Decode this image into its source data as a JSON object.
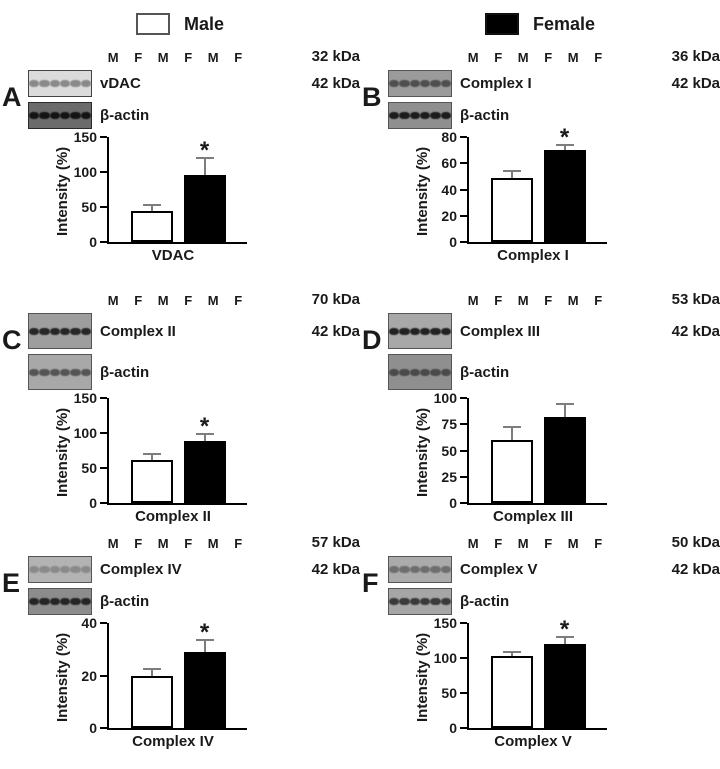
{
  "sig_marker": "*",
  "legend": {
    "male_label": "Male",
    "female_label": "Female",
    "male_color": "#ffffff",
    "female_color": "#000000"
  },
  "panels": [
    {
      "letter": "A",
      "lanes": [
        "M",
        "F",
        "M",
        "F",
        "M",
        "F"
      ],
      "blots": [
        {
          "kda": "32 kDa",
          "protein": "vDAC",
          "bg": "#dbdbdb",
          "band": "#8a8a8a",
          "border": "#444444"
        },
        {
          "kda": "42 kDa",
          "protein": "β-actin",
          "bg": "#6b6b6b",
          "band": "#141414",
          "border": "#2a2a2a"
        }
      ]
    },
    {
      "letter": "B",
      "lanes": [
        "M",
        "F",
        "M",
        "F",
        "M",
        "F"
      ],
      "blots": [
        {
          "kda": "36 kDa",
          "protein": "Complex I",
          "bg": "#9b9b9b",
          "band": "#4f4f4f",
          "border": "#555555"
        },
        {
          "kda": "42 kDa",
          "protein": "β-actin",
          "bg": "#8f8f8f",
          "band": "#1c1c1c",
          "border": "#555555"
        }
      ]
    },
    {
      "letter": "C",
      "lanes": [
        "M",
        "F",
        "M",
        "F",
        "M",
        "F"
      ],
      "blots": [
        {
          "kda": "70 kDa",
          "protein": "Complex II",
          "bg": "#9e9e9e",
          "band": "#262626",
          "border": "#555555"
        },
        {
          "kda": "42 kDa",
          "protein": "β-actin",
          "bg": "#a8a8a8",
          "band": "#555555",
          "border": "#555555"
        }
      ]
    },
    {
      "letter": "D",
      "lanes": [
        "M",
        "F",
        "M",
        "F",
        "M",
        "F"
      ],
      "blots": [
        {
          "kda": "53 kDa",
          "protein": "Complex III",
          "bg": "#a8a8a8",
          "band": "#222222",
          "border": "#555555"
        },
        {
          "kda": "42 kDa",
          "protein": "β-actin",
          "bg": "#8f8f8f",
          "band": "#4a4a4a",
          "border": "#555555"
        }
      ]
    },
    {
      "letter": "E",
      "lanes": [
        "M",
        "F",
        "M",
        "F",
        "M",
        "F"
      ],
      "blots": [
        {
          "kda": "57 kDa",
          "protein": "Complex IV",
          "bg": "#b3b3b3",
          "band": "#8a8a8a",
          "border": "#555555"
        },
        {
          "kda": "42 kDa",
          "protein": "β-actin",
          "bg": "#8c8c8c",
          "band": "#252525",
          "border": "#555555"
        }
      ]
    },
    {
      "letter": "F",
      "lanes": [
        "M",
        "F",
        "M",
        "F",
        "M",
        "F"
      ],
      "blots": [
        {
          "kda": "50 kDa",
          "protein": "Complex V",
          "bg": "#ababab",
          "band": "#6e6e6e",
          "border": "#555555"
        },
        {
          "kda": "42 kDa",
          "protein": "β-actin",
          "bg": "#a6a6a6",
          "band": "#3a3a3a",
          "border": "#555555"
        }
      ]
    }
  ],
  "chart_data": [
    {
      "type": "bar",
      "panel": "A",
      "categories": [
        "Male",
        "Female"
      ],
      "values": [
        45,
        96
      ],
      "errors": [
        7,
        22
      ],
      "significant": true,
      "title": "",
      "xlabel": "VDAC",
      "ylabel": "Intensity (%)",
      "ylim": [
        0,
        150
      ],
      "yticks": [
        0,
        50,
        100,
        150
      ],
      "grid": false,
      "legend_position": "top"
    },
    {
      "type": "bar",
      "panel": "B",
      "categories": [
        "Male",
        "Female"
      ],
      "values": [
        49,
        70
      ],
      "errors": [
        4,
        3
      ],
      "significant": true,
      "title": "",
      "xlabel": "Complex I",
      "ylabel": "Intensity (%)",
      "ylim": [
        0,
        80
      ],
      "yticks": [
        0,
        20,
        40,
        60,
        80
      ],
      "grid": false,
      "legend_position": "top"
    },
    {
      "type": "bar",
      "panel": "C",
      "categories": [
        "Male",
        "Female"
      ],
      "values": [
        62,
        88
      ],
      "errors": [
        7,
        9
      ],
      "significant": true,
      "title": "",
      "xlabel": "Complex II",
      "ylabel": "Intensity (%)",
      "ylim": [
        0,
        150
      ],
      "yticks": [
        0,
        50,
        100,
        150
      ],
      "grid": false,
      "legend_position": "top"
    },
    {
      "type": "bar",
      "panel": "D",
      "categories": [
        "Male",
        "Female"
      ],
      "values": [
        60,
        82
      ],
      "errors": [
        11,
        11
      ],
      "significant": false,
      "title": "",
      "xlabel": "Complex III",
      "ylabel": "Intensity (%)",
      "ylim": [
        0,
        100
      ],
      "yticks": [
        0,
        25,
        50,
        75,
        100
      ],
      "grid": false,
      "legend_position": "top"
    },
    {
      "type": "bar",
      "panel": "E",
      "categories": [
        "Male",
        "Female"
      ],
      "values": [
        20,
        29
      ],
      "errors": [
        2,
        4
      ],
      "significant": true,
      "title": "",
      "xlabel": "Complex IV",
      "ylabel": "Intensity (%)",
      "ylim": [
        0,
        40
      ],
      "yticks": [
        0,
        20,
        40
      ],
      "grid": false,
      "legend_position": "top"
    },
    {
      "type": "bar",
      "panel": "F",
      "categories": [
        "Male",
        "Female"
      ],
      "values": [
        103,
        120
      ],
      "errors": [
        4,
        8
      ],
      "significant": true,
      "title": "",
      "xlabel": "Complex V",
      "ylabel": "Intensity (%)",
      "ylim": [
        0,
        150
      ],
      "yticks": [
        0,
        50,
        100,
        150
      ],
      "grid": false,
      "legend_position": "top"
    }
  ]
}
